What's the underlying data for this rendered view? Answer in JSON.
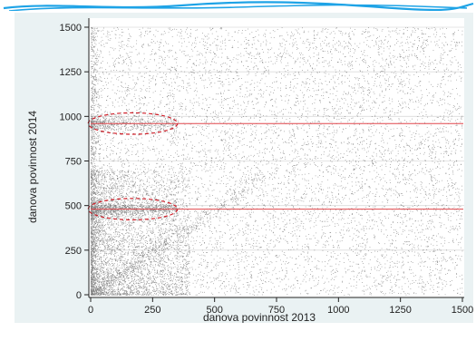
{
  "colors": {
    "frame_bg": "#eaf2f3",
    "plot_bg": "#ffffff",
    "points": "#1a1a1a",
    "reference_line": "#e0474c",
    "ellipse": "#d0202a",
    "gridline": "#dcdcdc",
    "top_banner": "#1ea3e6"
  },
  "chart_data": {
    "type": "scatter",
    "title": "",
    "xlabel": "danova povinnost 2013",
    "ylabel": "danova povinnost 2014",
    "xlim": [
      0,
      1500
    ],
    "ylim": [
      0,
      1500
    ],
    "x_ticks": [
      0,
      250,
      500,
      750,
      1000,
      1250,
      1500
    ],
    "y_ticks": [
      0,
      250,
      500,
      750,
      1000,
      1250,
      1500
    ],
    "x_tick_labels": [
      "0",
      "250",
      "500",
      "750",
      "1000",
      "1250",
      "1500"
    ],
    "y_tick_labels": [
      "0",
      "250",
      "500",
      "750",
      "1000",
      "1250",
      "1500"
    ],
    "grid": "horizontal",
    "legend": "none",
    "reference_lines": [
      {
        "axis": "y",
        "value": 480
      },
      {
        "axis": "y",
        "value": 960
      }
    ],
    "annotations": [
      {
        "type": "ellipse",
        "x_center": 170,
        "y_center": 480,
        "x_radius": 180,
        "y_radius": 60,
        "style": "dashed"
      },
      {
        "type": "ellipse",
        "x_center": 170,
        "y_center": 960,
        "x_radius": 180,
        "y_radius": 60,
        "style": "dashed"
      }
    ],
    "point_density": {
      "clusters": [
        {
          "x_range": [
            0,
            350
          ],
          "y_value": 480,
          "spread": 22,
          "share": 0.07
        },
        {
          "x_range": [
            0,
            350
          ],
          "y_value": 960,
          "spread": 25,
          "share": 0.04
        }
      ],
      "vertical_band_near_x0": {
        "x_max": 40,
        "share": 0.05
      },
      "dense_region_low_values": {
        "x_max": 400,
        "y_max": 700,
        "share": 0.25
      },
      "diagonal_band": {
        "share": 0.04
      },
      "uniform_background": {
        "share": 0.55
      }
    }
  }
}
